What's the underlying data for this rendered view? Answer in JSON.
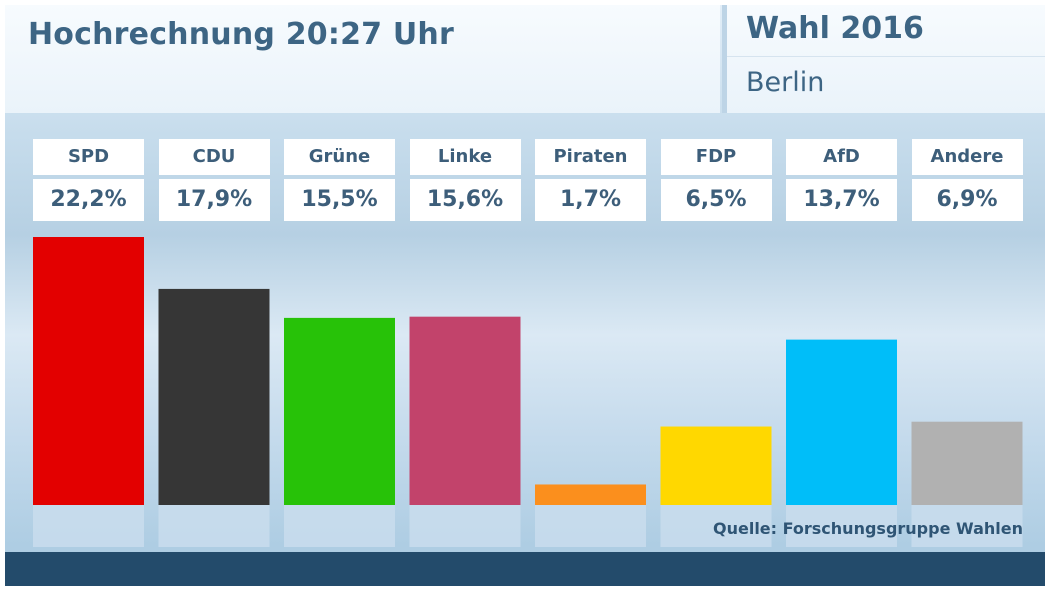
{
  "header": {
    "title": "Hochrechnung 20:27 Uhr",
    "election": "Wahl 2016",
    "region": "Berlin"
  },
  "source": "Quelle: Forschungsgruppe Wahlen",
  "chart_data": {
    "type": "bar",
    "title": "Hochrechnung 20:27 Uhr",
    "xlabel": "",
    "ylabel": "",
    "grid": false,
    "categories": [
      "SPD",
      "CDU",
      "Grüne",
      "Linke",
      "Piraten",
      "FDP",
      "AfD",
      "Andere"
    ],
    "values": [
      22.2,
      17.9,
      15.5,
      15.6,
      1.7,
      6.5,
      13.7,
      6.9
    ],
    "value_labels": [
      "22,2%",
      "17,9%",
      "15,5%",
      "15,6%",
      "1,7%",
      "6,5%",
      "13,7%",
      "6,9%"
    ],
    "colors": [
      "#e30000",
      "#363636",
      "#27c208",
      "#c2436b",
      "#fb8f1d",
      "#ffd800",
      "#00bef9",
      "#b1b1b1"
    ],
    "ylim": [
      0,
      22.2
    ]
  }
}
